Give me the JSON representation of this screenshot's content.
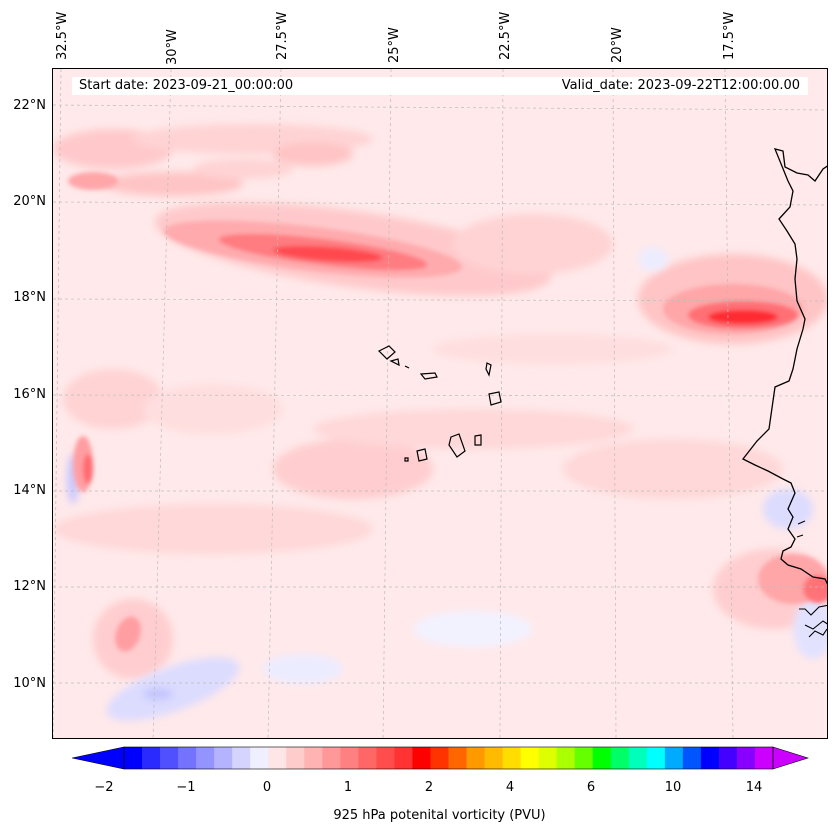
{
  "map": {
    "start_date": "Start date: 2023-09-21_00:00:00",
    "valid_date": "Valid_date: 2023-09-22T12:00:00.00",
    "longitude_labels": [
      "32.5°W",
      "30°W",
      "27.5°W",
      "25°W",
      "22.5°W",
      "20°W",
      "17.5°W"
    ],
    "latitude_labels": [
      "22°N",
      "20°N",
      "18°N",
      "16°N",
      "14°N",
      "12°N",
      "10°N"
    ],
    "colors": {
      "background_field": "#ffe9ea",
      "coastline": "#000000",
      "gridline": "#bbbbbb"
    }
  },
  "colorbar": {
    "label": "925 hPa potenital vorticity (PVU)",
    "ticks": [
      "−2",
      "−1",
      "0",
      "1",
      "2",
      "4",
      "6",
      "10",
      "14"
    ],
    "colors": [
      "#0000ff",
      "#2a2aff",
      "#5050ff",
      "#7373ff",
      "#9494ff",
      "#b3b3ff",
      "#d4d4ff",
      "#efefff",
      "#ffe6e6",
      "#ffcccc",
      "#ffb3b3",
      "#ff9999",
      "#ff8080",
      "#ff6666",
      "#ff4d4d",
      "#ff3333",
      "#ff0000",
      "#ff3300",
      "#ff6600",
      "#ff9900",
      "#ffbb00",
      "#ffdd00",
      "#ffff00",
      "#ddff00",
      "#aaff00",
      "#66ff00",
      "#00ff00",
      "#00ff66",
      "#00ffbb",
      "#00ffff",
      "#00aaff",
      "#0055ff",
      "#0000ff",
      "#4400ff",
      "#8800ff",
      "#cc00ff"
    ],
    "extend_min_color": "#0000ff",
    "extend_max_color": "#cc00ff"
  }
}
